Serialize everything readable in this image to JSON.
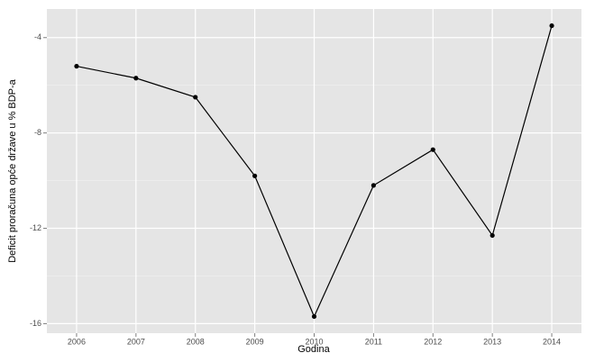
{
  "chart_data": {
    "type": "line",
    "x_label": "Godina",
    "y_label": "Deficit proračuna opće države u % BDP-a",
    "x": [
      2006,
      2007,
      2008,
      2009,
      2010,
      2011,
      2012,
      2013,
      2014
    ],
    "series": [
      {
        "color": "#000000",
        "values": [
          -5.2,
          -5.7,
          -6.5,
          -9.8,
          -15.7,
          -10.2,
          -8.7,
          -12.3,
          -3.5
        ]
      }
    ],
    "xlim": [
      2005.5,
      2014.5
    ],
    "xticks": [
      2006,
      2007,
      2008,
      2009,
      2010,
      2011,
      2012,
      2013,
      2014
    ],
    "ylim": [
      -16.4,
      -2.8
    ],
    "yticks": [
      -16,
      -12,
      -8,
      -4
    ],
    "y_minor_ticks": [
      -14,
      -10,
      -6
    ],
    "grid": true
  }
}
